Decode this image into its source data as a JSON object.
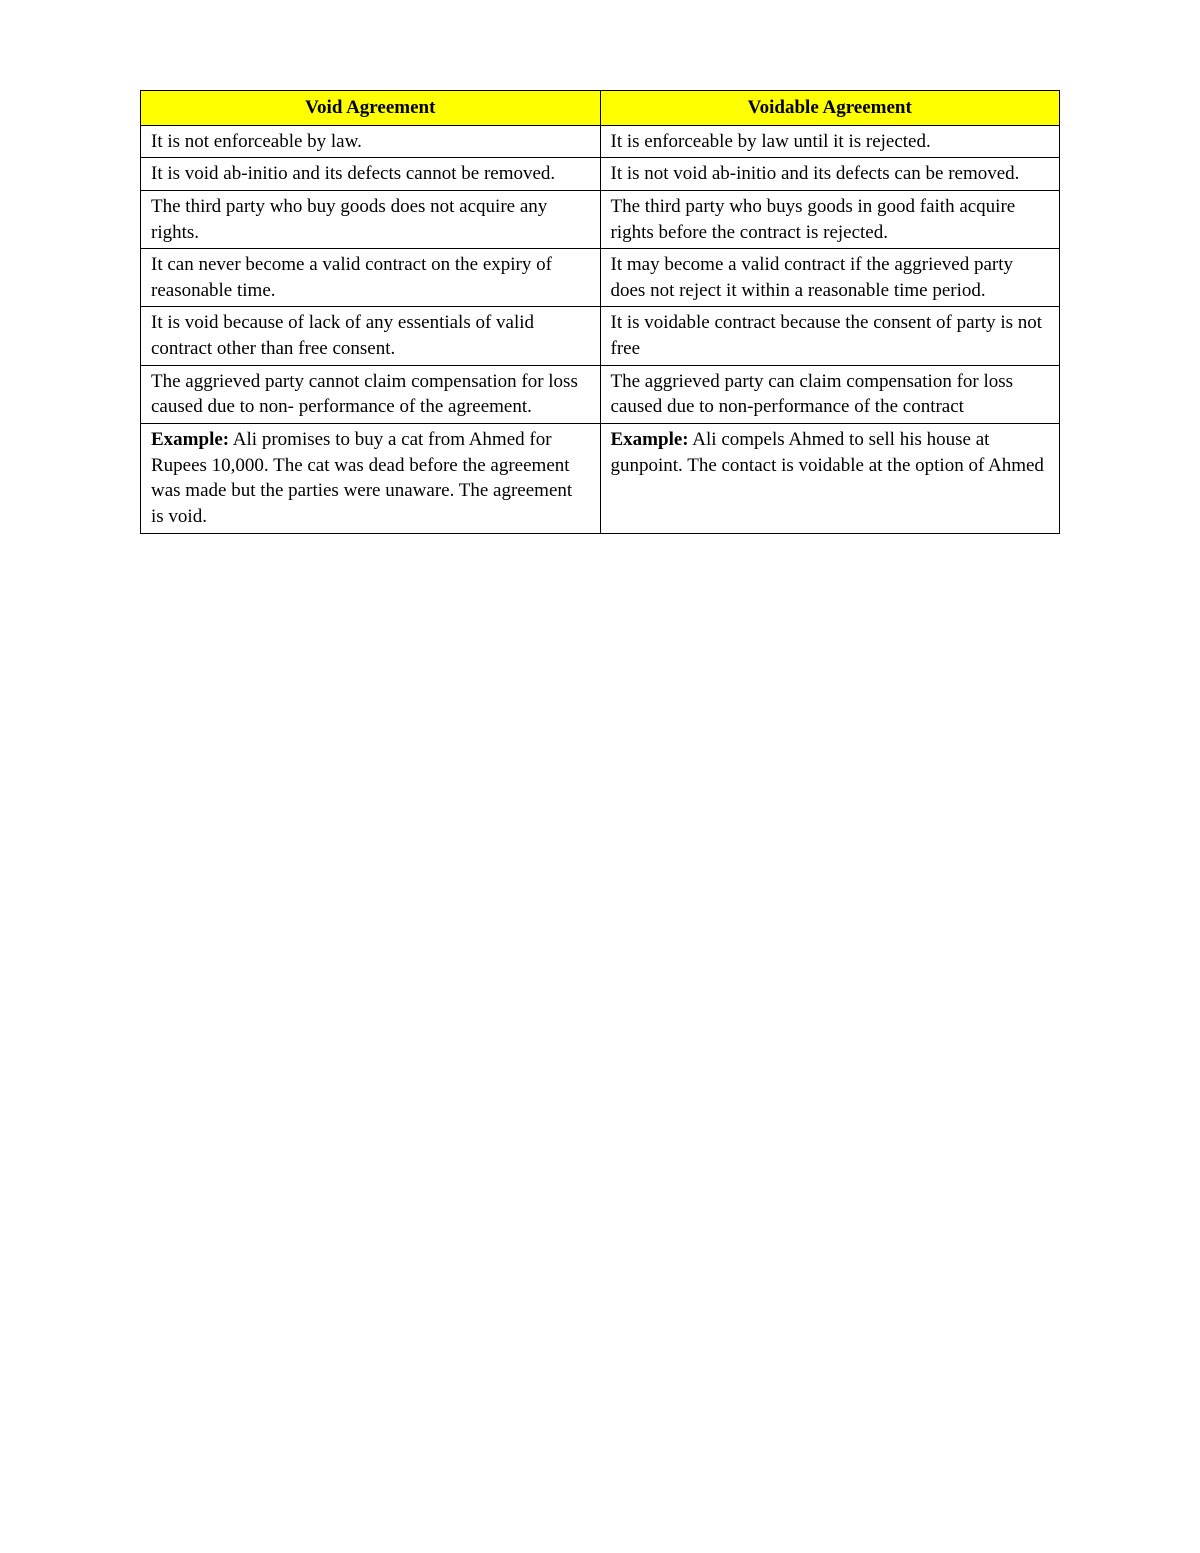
{
  "table": {
    "header_bg": "#ffff00",
    "border_color": "#000000",
    "text_color": "#000000",
    "font_family": "Georgia, 'Times New Roman', serif",
    "cell_fontsize": 19,
    "columns": [
      {
        "label": "Void Agreement",
        "width_pct": 50
      },
      {
        "label": "Voidable Agreement",
        "width_pct": 50
      }
    ],
    "rows": [
      {
        "left": "It is not enforceable by law.",
        "right": "It is enforceable by law until it is rejected."
      },
      {
        "left": "It is void ab-initio and its defects cannot be removed.",
        "right": "It is not void ab-initio and its defects can be removed."
      },
      {
        "left": "The third party who buy goods does not acquire any rights.",
        "right": "The third party who buys goods in good faith acquire rights before the contract is rejected."
      },
      {
        "left": "It can never become a valid contract on the expiry of reasonable time.",
        "right": "It may become a valid contract if the aggrieved party does not reject it within a reasonable time period."
      },
      {
        "left": "It is void because of lack of any essentials of valid contract other than free consent.",
        "right": "It is voidable contract because the consent of party is not free"
      },
      {
        "left": "The aggrieved party cannot claim compensation for loss caused due to non- performance of the agreement.",
        "right": "The aggrieved party can claim compensation for loss caused due to non-performance of the contract"
      },
      {
        "left_label": "Example:",
        "left": " Ali promises to buy a cat from Ahmed for Rupees 10,000. The cat was dead before the agreement was made but the parties were unaware. The agreement is void.",
        "right_label": "Example:",
        "right": " Ali compels Ahmed to sell his house at gunpoint. The contact is voidable at the option of Ahmed"
      }
    ]
  }
}
